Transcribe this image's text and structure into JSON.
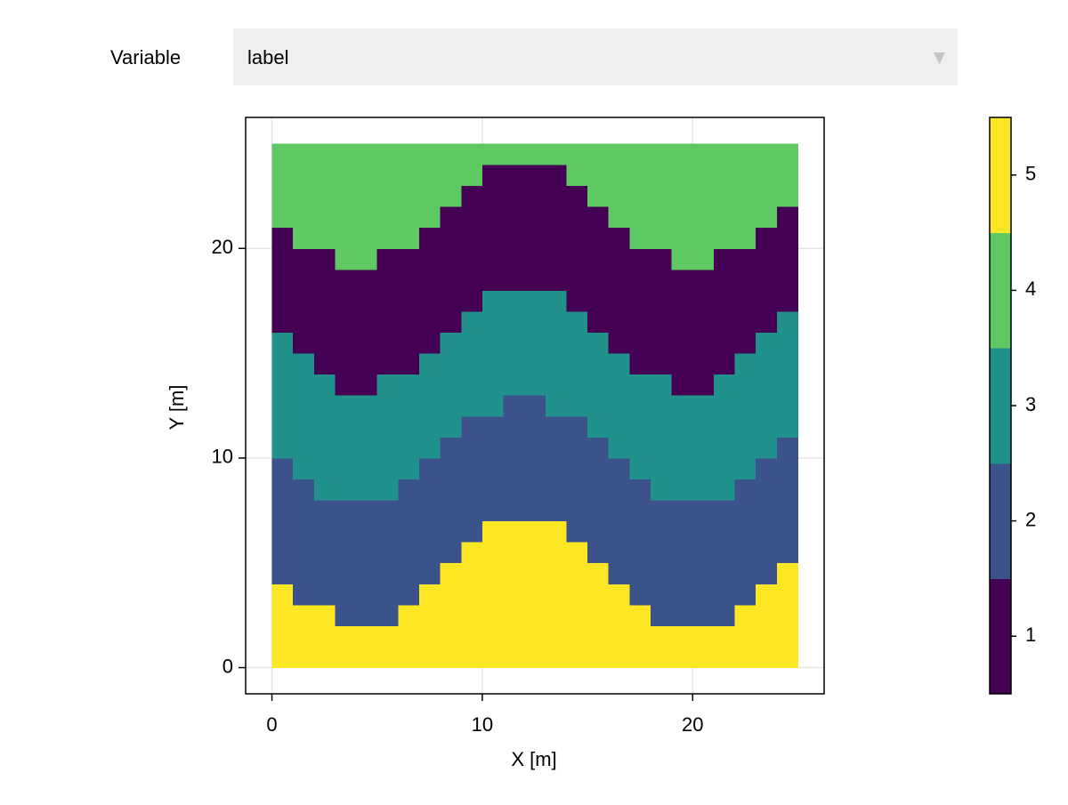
{
  "controls": {
    "label": "Variable",
    "selected": "label"
  },
  "chart_data": {
    "type": "heatmap",
    "xlabel": "X [m]",
    "ylabel": "Y [m]",
    "xbins": [
      0,
      1,
      2,
      3,
      4,
      5,
      6,
      7,
      8,
      9,
      10,
      11,
      12,
      13,
      14,
      15,
      16,
      17,
      18,
      19,
      20,
      21,
      22,
      23,
      24,
      25
    ],
    "ybins": [
      0,
      1,
      2,
      3,
      4,
      5,
      6,
      7,
      8,
      9,
      10,
      11,
      12,
      13,
      14,
      15,
      16,
      17,
      18,
      19,
      20,
      21,
      22,
      23,
      24,
      25
    ],
    "z": [
      [
        5,
        5,
        5,
        5,
        5,
        5,
        5,
        5,
        5,
        5,
        5,
        5,
        5,
        5,
        5,
        5,
        5,
        5,
        5,
        5,
        5,
        5,
        5,
        5,
        5
      ],
      [
        5,
        5,
        5,
        5,
        5,
        5,
        5,
        5,
        5,
        5,
        5,
        5,
        5,
        5,
        5,
        5,
        5,
        5,
        5,
        5,
        5,
        5,
        5,
        5,
        5
      ],
      [
        5,
        5,
        5,
        2,
        2,
        2,
        5,
        5,
        5,
        5,
        5,
        5,
        5,
        5,
        5,
        5,
        5,
        5,
        2,
        2,
        2,
        2,
        5,
        5,
        5
      ],
      [
        5,
        2,
        2,
        2,
        2,
        2,
        2,
        5,
        5,
        5,
        5,
        5,
        5,
        5,
        5,
        5,
        5,
        2,
        2,
        2,
        2,
        2,
        2,
        5,
        5
      ],
      [
        2,
        2,
        2,
        2,
        2,
        2,
        2,
        2,
        5,
        5,
        5,
        5,
        5,
        5,
        5,
        5,
        2,
        2,
        2,
        2,
        2,
        2,
        2,
        2,
        5
      ],
      [
        2,
        2,
        2,
        2,
        2,
        2,
        2,
        2,
        2,
        5,
        5,
        5,
        5,
        5,
        5,
        2,
        2,
        2,
        2,
        2,
        2,
        2,
        2,
        2,
        2
      ],
      [
        2,
        2,
        2,
        2,
        2,
        2,
        2,
        2,
        2,
        2,
        5,
        5,
        5,
        5,
        2,
        2,
        2,
        2,
        2,
        2,
        2,
        2,
        2,
        2,
        2
      ],
      [
        2,
        2,
        2,
        2,
        2,
        2,
        2,
        2,
        2,
        2,
        2,
        2,
        2,
        2,
        2,
        2,
        2,
        2,
        2,
        2,
        2,
        2,
        2,
        2,
        2
      ],
      [
        2,
        2,
        3,
        3,
        3,
        3,
        2,
        2,
        2,
        2,
        2,
        2,
        2,
        2,
        2,
        2,
        2,
        2,
        3,
        3,
        3,
        3,
        2,
        2,
        2
      ],
      [
        2,
        3,
        3,
        3,
        3,
        3,
        3,
        2,
        2,
        2,
        2,
        2,
        2,
        2,
        2,
        2,
        2,
        3,
        3,
        3,
        3,
        3,
        3,
        2,
        2
      ],
      [
        3,
        3,
        3,
        3,
        3,
        3,
        3,
        3,
        2,
        2,
        2,
        2,
        2,
        2,
        2,
        2,
        3,
        3,
        3,
        3,
        3,
        3,
        3,
        3,
        2
      ],
      [
        3,
        3,
        3,
        3,
        3,
        3,
        3,
        3,
        3,
        2,
        2,
        2,
        2,
        2,
        2,
        3,
        3,
        3,
        3,
        3,
        3,
        3,
        3,
        3,
        3
      ],
      [
        3,
        3,
        3,
        3,
        3,
        3,
        3,
        3,
        3,
        3,
        3,
        2,
        2,
        3,
        3,
        3,
        3,
        3,
        3,
        3,
        3,
        3,
        3,
        3,
        3
      ],
      [
        3,
        3,
        3,
        1,
        1,
        3,
        3,
        3,
        3,
        3,
        3,
        3,
        3,
        3,
        3,
        3,
        3,
        3,
        3,
        1,
        1,
        3,
        3,
        3,
        3
      ],
      [
        3,
        3,
        1,
        1,
        1,
        1,
        1,
        3,
        3,
        3,
        3,
        3,
        3,
        3,
        3,
        3,
        3,
        1,
        1,
        1,
        1,
        1,
        3,
        3,
        3
      ],
      [
        3,
        1,
        1,
        1,
        1,
        1,
        1,
        1,
        3,
        3,
        3,
        3,
        3,
        3,
        3,
        3,
        1,
        1,
        1,
        1,
        1,
        1,
        1,
        3,
        3
      ],
      [
        1,
        1,
        1,
        1,
        1,
        1,
        1,
        1,
        1,
        3,
        3,
        3,
        3,
        3,
        3,
        1,
        1,
        1,
        1,
        1,
        1,
        1,
        1,
        1,
        3
      ],
      [
        1,
        1,
        1,
        1,
        1,
        1,
        1,
        1,
        1,
        1,
        3,
        3,
        3,
        3,
        1,
        1,
        1,
        1,
        1,
        1,
        1,
        1,
        1,
        1,
        1
      ],
      [
        1,
        1,
        1,
        1,
        1,
        1,
        1,
        1,
        1,
        1,
        1,
        1,
        1,
        1,
        1,
        1,
        1,
        1,
        1,
        1,
        1,
        1,
        1,
        1,
        1
      ],
      [
        1,
        1,
        1,
        4,
        4,
        1,
        1,
        1,
        1,
        1,
        1,
        1,
        1,
        1,
        1,
        1,
        1,
        1,
        1,
        4,
        4,
        1,
        1,
        1,
        1
      ],
      [
        1,
        4,
        4,
        4,
        4,
        4,
        4,
        1,
        1,
        1,
        1,
        1,
        1,
        1,
        1,
        1,
        1,
        4,
        4,
        4,
        4,
        4,
        4,
        1,
        1
      ],
      [
        4,
        4,
        4,
        4,
        4,
        4,
        4,
        4,
        1,
        1,
        1,
        1,
        1,
        1,
        1,
        1,
        4,
        4,
        4,
        4,
        4,
        4,
        4,
        4,
        1
      ],
      [
        4,
        4,
        4,
        4,
        4,
        4,
        4,
        4,
        4,
        1,
        1,
        1,
        1,
        1,
        1,
        4,
        4,
        4,
        4,
        4,
        4,
        4,
        4,
        4,
        4
      ],
      [
        4,
        4,
        4,
        4,
        4,
        4,
        4,
        4,
        4,
        4,
        1,
        1,
        1,
        1,
        4,
        4,
        4,
        4,
        4,
        4,
        4,
        4,
        4,
        4,
        4
      ],
      [
        4,
        4,
        4,
        4,
        4,
        4,
        4,
        4,
        4,
        4,
        4,
        4,
        4,
        4,
        4,
        4,
        4,
        4,
        4,
        4,
        4,
        4,
        4,
        4,
        4
      ]
    ],
    "xlim": [
      -1.25,
      26.25
    ],
    "ylim": [
      -1.25,
      26.25
    ],
    "xticks": [
      0,
      10,
      20
    ],
    "yticks": [
      0,
      10,
      20
    ],
    "grid": true,
    "colorbar": {
      "levels": [
        1,
        2,
        3,
        4,
        5
      ],
      "colors": [
        "#440154",
        "#3b528b",
        "#21918c",
        "#5ec962",
        "#fde725"
      ],
      "lim": [
        0.5,
        5.5
      ],
      "ticks": [
        1,
        2,
        3,
        4,
        5
      ]
    }
  }
}
